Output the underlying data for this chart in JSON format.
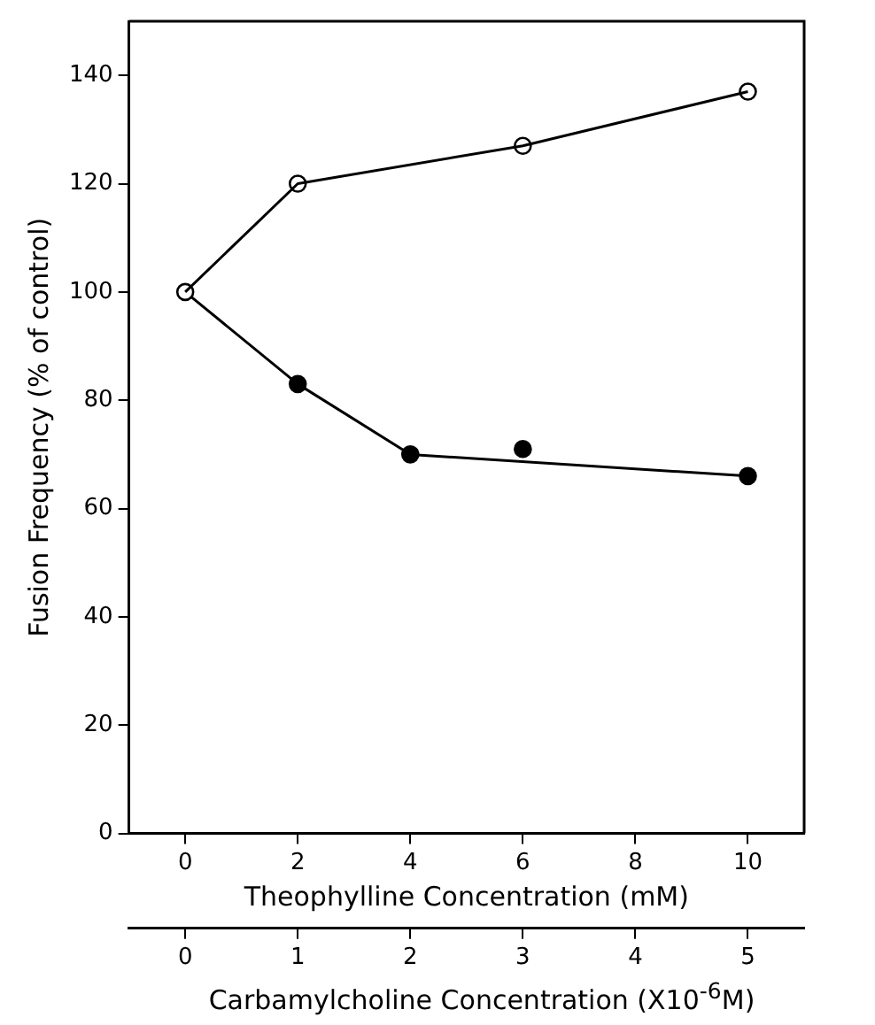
{
  "chart_data": {
    "type": "scatter",
    "ylabel": "Fusion Frequency (% of control)",
    "xlabel": "Theophylline Concentration (mM)",
    "x2label": "Carbamylcholine Concentration (X10$^{-6}$M)",
    "xlim": [
      -1,
      11
    ],
    "xticks": [
      0,
      2,
      4,
      6,
      8,
      10
    ],
    "x2lim": [
      -0.5,
      5.5
    ],
    "x2ticks": [
      0,
      1,
      2,
      3,
      4,
      5
    ],
    "ylim": [
      0,
      150
    ],
    "yticks": [
      0,
      20,
      40,
      60,
      80,
      100,
      120,
      140
    ],
    "marker": "circle",
    "line_style": "solid",
    "series": [
      {
        "type": "line",
        "marker": "none",
        "color": "#000000",
        "x": [
          0,
          2,
          6,
          10
        ],
        "values": [
          100,
          120,
          127,
          137
        ]
      },
      {
        "color": "#ffffff",
        "x": [
          0,
          2,
          6,
          10
        ],
        "values": [
          100,
          120,
          127,
          137
        ]
      },
      {
        "type": "line",
        "marker": "none",
        "color": "#000000",
        "x": [
          0,
          2,
          4,
          10
        ],
        "values": [
          100,
          83,
          70,
          66
        ]
      },
      {
        "color": "#000000",
        "x": [
          2,
          4,
          6,
          10
        ],
        "values": [
          83,
          70,
          71,
          66
        ]
      }
    ]
  }
}
